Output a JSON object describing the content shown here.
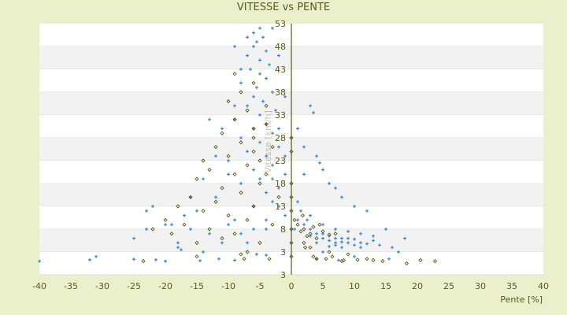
{
  "chart_data": {
    "type": "scatter",
    "title": "VITESSE vs PENTE",
    "xlabel": "Pente [%]",
    "ylabel": "Vitesse [km/h]",
    "xlim": [
      -40,
      40
    ],
    "ylim": [
      -2,
      53
    ],
    "xticks": [
      "-40",
      "-35",
      "-30",
      "-25",
      "-20",
      "-15",
      "-10",
      "-5",
      "0",
      "5",
      "10",
      "15",
      "20",
      "25",
      "30",
      "35",
      "40"
    ],
    "yticks": [
      "53",
      "48",
      "43",
      "38",
      "33",
      "28",
      "23",
      "18",
      "13",
      "8",
      "3",
      "3"
    ],
    "grid": "horizontal bands",
    "legend": "none",
    "colors": {
      "series_blue": "#3a86d8",
      "series_olive": "#5a5a10",
      "axis": "#5a5c14",
      "band": "#f2f2f2"
    },
    "series": [
      {
        "marker": "plus",
        "color": "#3a86d8",
        "points": [
          [
            -5,
            52
          ],
          [
            -6,
            51
          ],
          [
            -4.5,
            50
          ],
          [
            -5.5,
            49
          ],
          [
            -6,
            48
          ],
          [
            -4,
            47
          ],
          [
            -7,
            46
          ],
          [
            -5,
            45
          ],
          [
            -3.5,
            44
          ],
          [
            -6.5,
            43
          ],
          [
            -5,
            42
          ],
          [
            -4,
            41
          ],
          [
            -8,
            40
          ],
          [
            -5.5,
            39
          ],
          [
            -3,
            38
          ],
          [
            -6,
            37
          ],
          [
            -4.5,
            36
          ],
          [
            -7,
            35
          ],
          [
            -2.5,
            34
          ],
          [
            -5,
            33
          ],
          [
            -9,
            32
          ],
          [
            -4,
            31
          ],
          [
            -6,
            30
          ],
          [
            -3,
            29
          ],
          [
            -8,
            28
          ],
          [
            -5,
            27
          ],
          [
            -2,
            26
          ],
          [
            -7,
            25
          ],
          [
            -4,
            24
          ],
          [
            -10,
            23
          ],
          [
            -3,
            22
          ],
          [
            -6,
            21
          ],
          [
            -1,
            20
          ],
          [
            -5,
            19
          ],
          [
            -8,
            18
          ],
          [
            -2,
            17
          ],
          [
            -4,
            16
          ],
          [
            -12,
            15
          ],
          [
            -3,
            14
          ],
          [
            -6,
            13
          ],
          [
            -15,
            12
          ],
          [
            -1,
            11
          ],
          [
            -9,
            10
          ],
          [
            -20,
            9
          ],
          [
            -4,
            8
          ],
          [
            -13,
            7
          ],
          [
            -25,
            6
          ],
          [
            -7,
            5
          ],
          [
            -18,
            4
          ],
          [
            -40,
            1
          ],
          [
            -32,
            1.3
          ],
          [
            -31,
            2
          ],
          [
            -25,
            1.4
          ],
          [
            -21.5,
            1.3
          ],
          [
            -20,
            1
          ],
          [
            -17.5,
            3.5
          ],
          [
            -14.5,
            1.1
          ],
          [
            -11.5,
            1.5
          ],
          [
            -9,
            1.2
          ],
          [
            -5.5,
            2.5
          ],
          [
            -4,
            2.3
          ],
          [
            3,
            35
          ],
          [
            3.5,
            33.5
          ],
          [
            1,
            30
          ],
          [
            2,
            26
          ],
          [
            4,
            24
          ],
          [
            5,
            21
          ],
          [
            4.5,
            22.5
          ],
          [
            2,
            20
          ],
          [
            6,
            18
          ],
          [
            7,
            17
          ],
          [
            8,
            15
          ],
          [
            10,
            13
          ],
          [
            12,
            12
          ],
          [
            15,
            8
          ],
          [
            18,
            6
          ],
          [
            17,
            3
          ],
          [
            15.5,
            1.5
          ],
          [
            1,
            14
          ],
          [
            1,
            10
          ],
          [
            2,
            9
          ],
          [
            3,
            8
          ],
          [
            4,
            7
          ],
          [
            5,
            6
          ],
          [
            6,
            5.5
          ],
          [
            7,
            5
          ],
          [
            8,
            6
          ],
          [
            9,
            5
          ],
          [
            10,
            4.5
          ],
          [
            11,
            5
          ],
          [
            12,
            4.8
          ],
          [
            13,
            5.5
          ],
          [
            14,
            4.5
          ],
          [
            5,
            7
          ],
          [
            6,
            6.5
          ],
          [
            7,
            6
          ],
          [
            8,
            5.2
          ],
          [
            9,
            6
          ],
          [
            10,
            5.8
          ],
          [
            11,
            4
          ],
          [
            6,
            4.2
          ],
          [
            7,
            4.5
          ],
          [
            8,
            4
          ],
          [
            4,
            5
          ],
          [
            3,
            6.5
          ],
          [
            2.5,
            10
          ],
          [
            0.5,
            8
          ],
          [
            1.5,
            12
          ],
          [
            3,
            11
          ],
          [
            5,
            9
          ],
          [
            7,
            8
          ],
          [
            9,
            7.5
          ],
          [
            11,
            7
          ],
          [
            13,
            6.5
          ],
          [
            16,
            4
          ],
          [
            10,
            2
          ],
          [
            7.5,
            1.2
          ],
          [
            5,
            3
          ],
          [
            4,
            1.5
          ],
          [
            -22,
            13
          ],
          [
            -23,
            12
          ],
          [
            -19,
            9
          ],
          [
            -23,
            8
          ],
          [
            -16,
            15
          ],
          [
            -14,
            19
          ],
          [
            -12,
            24
          ],
          [
            -13,
            32
          ],
          [
            -11,
            30
          ],
          [
            -10,
            20
          ],
          [
            -9,
            35
          ],
          [
            -8,
            43
          ],
          [
            -9,
            48
          ],
          [
            -7,
            50
          ],
          [
            -3,
            52
          ],
          [
            -2,
            46
          ],
          [
            -1,
            37
          ],
          [
            -2,
            30
          ],
          [
            -1,
            24
          ],
          [
            -3,
            19
          ],
          [
            -2,
            13
          ],
          [
            -4,
            10
          ],
          [
            -6,
            8
          ],
          [
            -8,
            7
          ],
          [
            -10,
            9
          ],
          [
            -11,
            5
          ],
          [
            -14,
            3
          ],
          [
            -16,
            8
          ],
          [
            -17,
            11
          ],
          [
            -18,
            5
          ]
        ]
      },
      {
        "marker": "diamond",
        "color": "#5a5a10",
        "points": [
          [
            -9,
            42
          ],
          [
            -8,
            38
          ],
          [
            -10,
            36
          ],
          [
            -7,
            34
          ],
          [
            -9,
            32
          ],
          [
            -6,
            30
          ],
          [
            -11,
            29
          ],
          [
            -8,
            27
          ],
          [
            -12,
            26
          ],
          [
            -6,
            25
          ],
          [
            -10,
            24
          ],
          [
            -14,
            23
          ],
          [
            -7,
            22
          ],
          [
            -13,
            21
          ],
          [
            -9,
            20
          ],
          [
            -15,
            19
          ],
          [
            -5,
            18
          ],
          [
            -11,
            17
          ],
          [
            -8,
            16
          ],
          [
            -16,
            15
          ],
          [
            -12,
            14
          ],
          [
            -6,
            13
          ],
          [
            -18,
            13
          ],
          [
            -14,
            12
          ],
          [
            -10,
            11
          ],
          [
            -20,
            10
          ],
          [
            -7,
            10
          ],
          [
            -17,
            9
          ],
          [
            -13,
            8
          ],
          [
            -22,
            8
          ],
          [
            -9,
            7
          ],
          [
            -19,
            7
          ],
          [
            -11,
            6
          ],
          [
            -15,
            5
          ],
          [
            -5,
            5
          ],
          [
            -4,
            20
          ],
          [
            -3,
            26
          ],
          [
            -4,
            31
          ],
          [
            -2,
            15
          ],
          [
            -3,
            9
          ],
          [
            -7,
            3
          ],
          [
            -8,
            2.5
          ],
          [
            -7.5,
            1.5
          ],
          [
            -15,
            2
          ],
          [
            -23.5,
            1
          ],
          [
            -3.5,
            1.5
          ],
          [
            -6,
            28
          ],
          [
            -5,
            23
          ],
          [
            -4,
            35
          ],
          [
            -6,
            40
          ],
          [
            0.5,
            10
          ],
          [
            1,
            9
          ],
          [
            2,
            8
          ],
          [
            3,
            7
          ],
          [
            1.5,
            7.5
          ],
          [
            2.5,
            6.5
          ],
          [
            3.5,
            8.5
          ],
          [
            4,
            6
          ],
          [
            5,
            7.5
          ],
          [
            6,
            6.8
          ],
          [
            4.5,
            9
          ],
          [
            7,
            7
          ],
          [
            2,
            5
          ],
          [
            3,
            4
          ],
          [
            3.5,
            2
          ],
          [
            4,
            1.5
          ],
          [
            5.5,
            1.5
          ],
          [
            6.5,
            2
          ],
          [
            8,
            1
          ],
          [
            8.3,
            1.2
          ],
          [
            10.5,
            1.3
          ],
          [
            12,
            1.5
          ],
          [
            13,
            1.2
          ],
          [
            14.5,
            1
          ],
          [
            18.3,
            0.5
          ],
          [
            20.5,
            1.2
          ],
          [
            22.8,
            1
          ],
          [
            6,
            3
          ],
          [
            9,
            2.5
          ],
          [
            1.8,
            11
          ],
          [
            2.2,
            4
          ],
          [
            0,
            2
          ],
          [
            0,
            5
          ],
          [
            0,
            8
          ],
          [
            0,
            12
          ],
          [
            0,
            15
          ],
          [
            0,
            18
          ],
          [
            0,
            28
          ],
          [
            0,
            25
          ]
        ]
      }
    ]
  }
}
